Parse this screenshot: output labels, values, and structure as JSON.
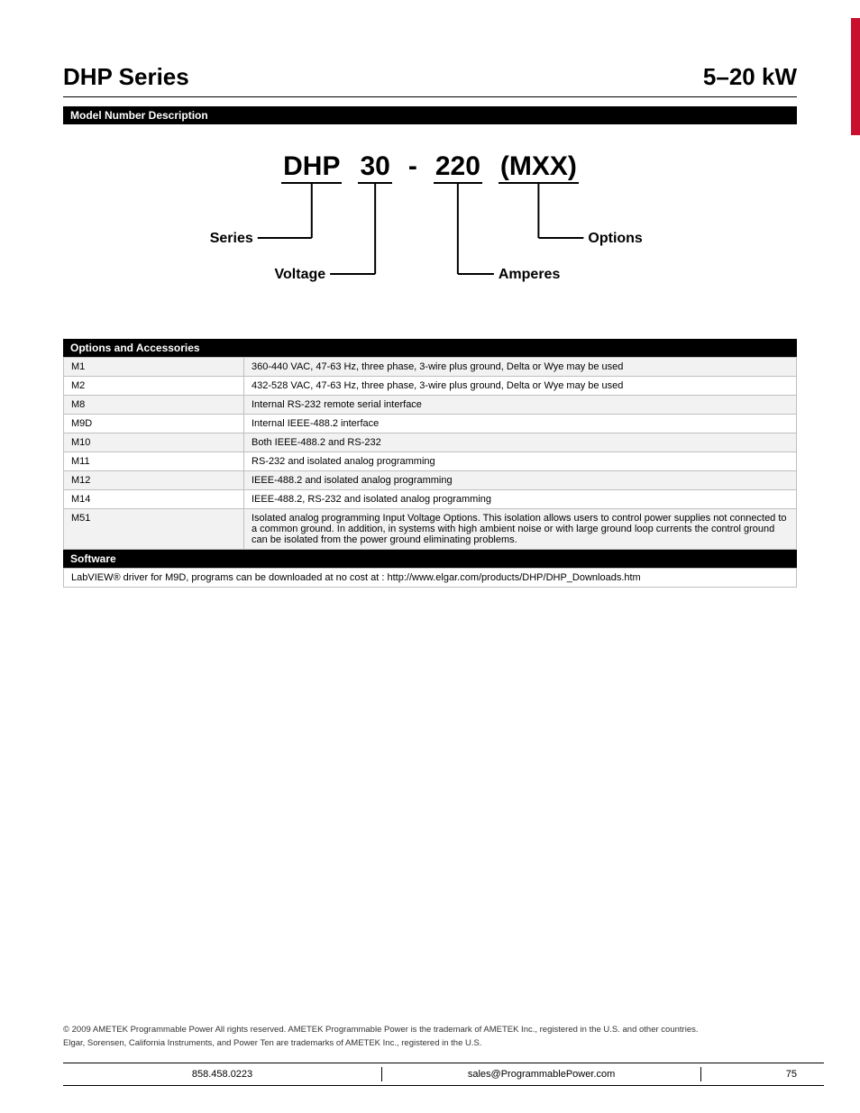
{
  "header": {
    "series_title": "DHP Series",
    "kw_range": "5–20 kW"
  },
  "model_section": {
    "title": "Model Number Description",
    "parts": {
      "series": "DHP",
      "voltage": "30",
      "dash": "-",
      "amperes": "220",
      "options": "(MXX)"
    },
    "labels": {
      "series": "Series",
      "voltage": "Voltage",
      "amperes": "Amperes",
      "options": "Options"
    }
  },
  "options_section": {
    "title": "Options and Accessories",
    "rows": [
      {
        "code": "M1",
        "desc": "360-440 VAC, 47-63 Hz, three phase, 3-wire plus ground, Delta or Wye may be used"
      },
      {
        "code": "M2",
        "desc": "432-528 VAC, 47-63 Hz, three phase, 3-wire plus ground, Delta or Wye may be used"
      },
      {
        "code": "M8",
        "desc": "Internal RS-232 remote serial interface"
      },
      {
        "code": "M9D",
        "desc": "Internal IEEE-488.2 interface"
      },
      {
        "code": "M10",
        "desc": "Both IEEE-488.2 and RS-232"
      },
      {
        "code": "M11",
        "desc": "RS-232 and isolated analog programming"
      },
      {
        "code": "M12",
        "desc": "IEEE-488.2 and isolated analog programming"
      },
      {
        "code": "M14",
        "desc": "IEEE-488.2, RS-232 and isolated analog programming"
      },
      {
        "code": "M51",
        "desc": "Isolated analog programming Input Voltage Options. This isolation allows users to control power supplies not connected to a common ground. In addition, in systems with high ambient noise or with large ground loop currents the control ground can be isolated from the power ground eliminating problems."
      }
    ]
  },
  "software_section": {
    "title": "Software",
    "text": "LabVIEW® driver for M9D, programs can be downloaded at no cost at : http://www.elgar.com/products/DHP/DHP_Downloads.htm"
  },
  "footer": {
    "legal_line1": "© 2009 AMETEK Programmable Power All rights reserved. AMETEK Programmable Power is the trademark of AMETEK Inc., registered in the U.S. and other countries.",
    "legal_line2": "Elgar, Sorensen, California Instruments, and Power Ten are trademarks of AMETEK Inc., registered in the U.S.",
    "phone": "858.458.0223",
    "email": "sales@ProgrammablePower.com",
    "page": "75"
  },
  "style": {
    "accent_color": "#c8102e",
    "header_bg": "#000000",
    "header_fg": "#ffffff",
    "row_alt_bg": "#f2f2f2",
    "border_color": "#bfbfbf"
  }
}
